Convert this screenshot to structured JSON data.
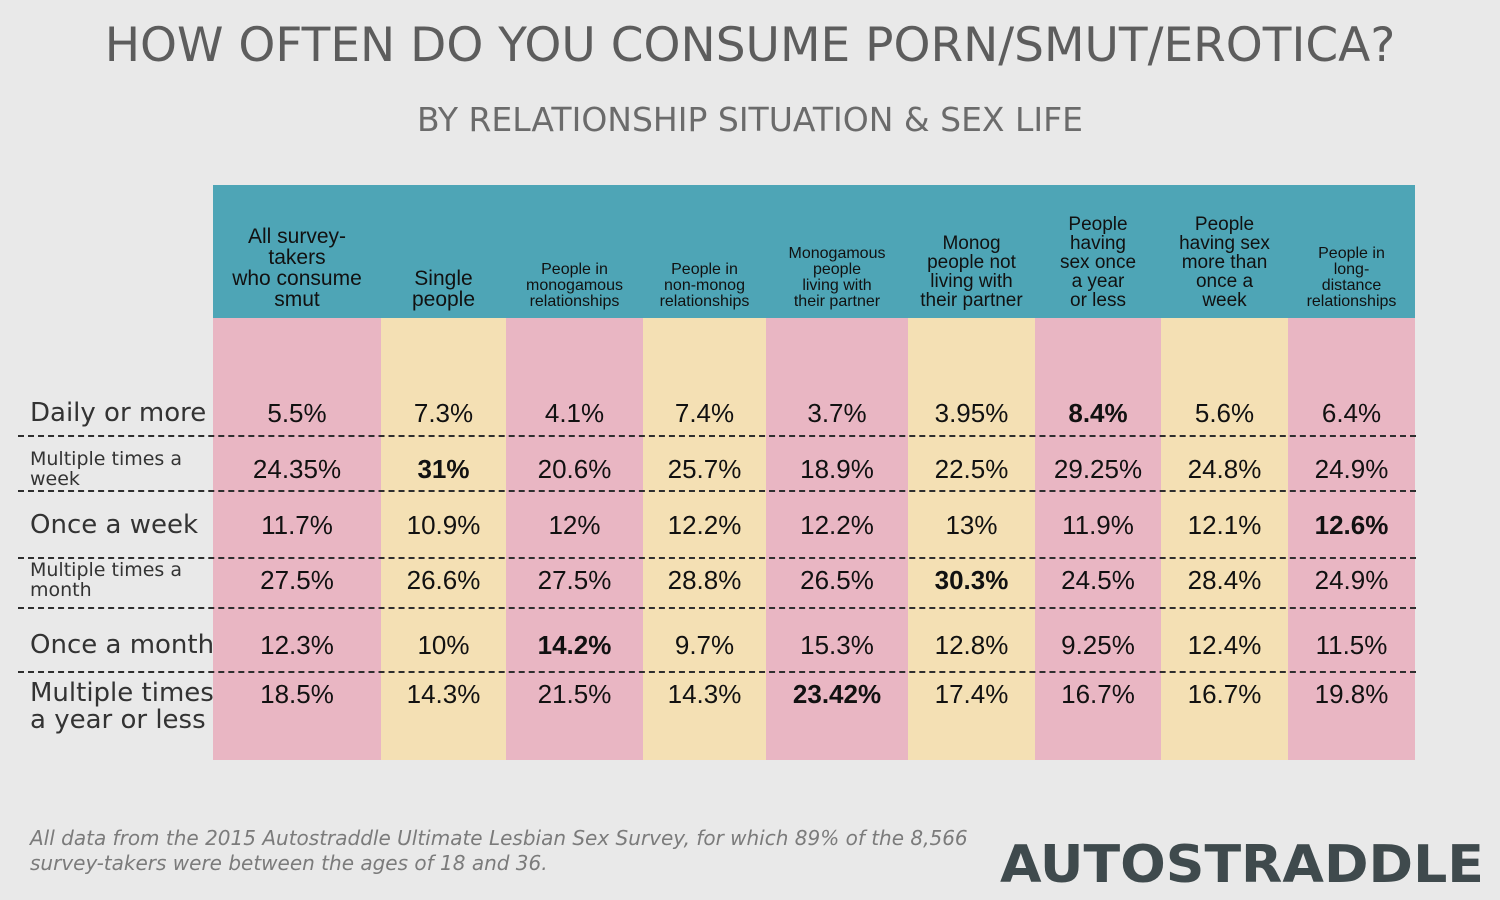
{
  "title": "HOW OFTEN DO YOU CONSUME PORN/SMUT/EROTICA?",
  "subtitle": "BY RELATIONSHIP SITUATION & SEX LIFE",
  "chart_data": {
    "type": "table",
    "columns": [
      {
        "label": "All survey-takers who consume smut",
        "lines": [
          "All survey-",
          "takers",
          "who consume",
          "smut"
        ],
        "color": "#e9b6c3"
      },
      {
        "label": "Single people",
        "lines": [
          "Single",
          "people"
        ],
        "color": "#f4e0b4"
      },
      {
        "label": "People in monogamous relationships",
        "lines": [
          "People in",
          "monogamous",
          "relationships"
        ],
        "color": "#e9b6c3"
      },
      {
        "label": "People in non-monog relationships",
        "lines": [
          "People in",
          "non-monog",
          "relationships"
        ],
        "color": "#f4e0b4"
      },
      {
        "label": "Monogamous people living with their partner",
        "lines": [
          "Monogamous",
          "people",
          "living with",
          "their partner"
        ],
        "color": "#e9b6c3"
      },
      {
        "label": "Monog people not living with their partner",
        "lines": [
          "Monog",
          "people not",
          "living with",
          "their partner"
        ],
        "color": "#f4e0b4"
      },
      {
        "label": "People having sex once a year or less",
        "lines": [
          "People",
          "having",
          "sex once",
          "a year",
          "or less"
        ],
        "color": "#e9b6c3"
      },
      {
        "label": "People having sex more than once a week",
        "lines": [
          "People",
          "having sex",
          "more than",
          "once a",
          "week"
        ],
        "color": "#f4e0b4"
      },
      {
        "label": "People in long-distance relationships",
        "lines": [
          "People in",
          "long-",
          "distance",
          "relationships"
        ],
        "color": "#e9b6c3"
      }
    ],
    "rows": [
      {
        "label": "Daily or more",
        "lines": [
          "Daily or more"
        ],
        "values": [
          "5.5%",
          "7.3%",
          "4.1%",
          "7.4%",
          "3.7%",
          "3.95%",
          "8.4%",
          "5.6%",
          "6.4%"
        ],
        "bold_index": 6
      },
      {
        "label": "Multiple times a week",
        "lines": [
          "Multiple times a",
          "week"
        ],
        "values": [
          "24.35%",
          "31%",
          "20.6%",
          "25.7%",
          "18.9%",
          "22.5%",
          "29.25%",
          "24.8%",
          "24.9%"
        ],
        "bold_index": 1
      },
      {
        "label": "Once a week",
        "lines": [
          "Once a week"
        ],
        "values": [
          "11.7%",
          "10.9%",
          "12%",
          "12.2%",
          "12.2%",
          "13%",
          "11.9%",
          "12.1%",
          "12.6%"
        ],
        "bold_index": 8
      },
      {
        "label": "Multiple times a month",
        "lines": [
          "Multiple times a",
          "month"
        ],
        "values": [
          "27.5%",
          "26.6%",
          "27.5%",
          "28.8%",
          "26.5%",
          "30.3%",
          "24.5%",
          "28.4%",
          "24.9%"
        ],
        "bold_index": 5
      },
      {
        "label": "Once a month",
        "lines": [
          "Once a month"
        ],
        "values": [
          "12.3%",
          "10%",
          "14.2%",
          "9.7%",
          "15.3%",
          "12.8%",
          "9.25%",
          "12.4%",
          "11.5%"
        ],
        "bold_index": 2
      },
      {
        "label": "Multiple times a year or less",
        "lines": [
          "Multiple times",
          "a year or less"
        ],
        "values": [
          "18.5%",
          "14.3%",
          "21.5%",
          "14.3%",
          "23.42%",
          "17.4%",
          "16.7%",
          "16.7%",
          "19.8%"
        ],
        "bold_index": 4
      }
    ],
    "header_color": "#4ea5b6"
  },
  "footnote": "All data from the 2015 Autostraddle Ultimate Lesbian Sex Survey, for which 89% of the 8,566 survey-takers were between the ages of 18 and 36.",
  "logo_text": "AUTOSTRADDLE"
}
